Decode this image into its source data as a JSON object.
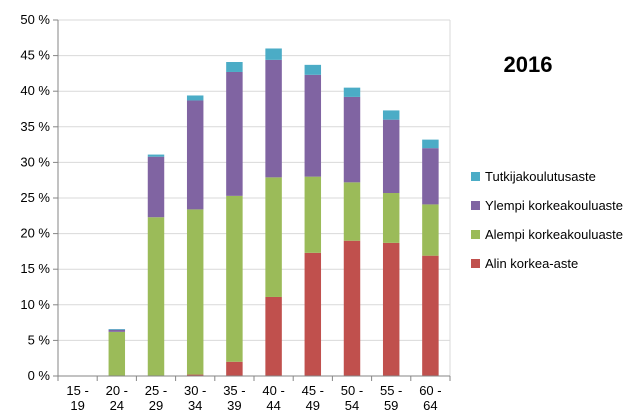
{
  "chart_data": {
    "type": "bar",
    "stacked": true,
    "title": "2016",
    "xlabel": "",
    "ylabel": "",
    "ylim": [
      0,
      50
    ],
    "y_ticks": [
      "0 %",
      "5 %",
      "10 %",
      "15 %",
      "20 %",
      "25 %",
      "30 %",
      "35 %",
      "40 %",
      "45 %",
      "50 %"
    ],
    "y_tick_values": [
      0,
      5,
      10,
      15,
      20,
      25,
      30,
      35,
      40,
      45,
      50
    ],
    "categories": [
      [
        "15 -",
        "19"
      ],
      [
        "20 -",
        "24"
      ],
      [
        "25 -",
        "29"
      ],
      [
        "30 -",
        "34"
      ],
      [
        "35 -",
        "39"
      ],
      [
        "40 -",
        "44"
      ],
      [
        "45 -",
        "49"
      ],
      [
        "50 -",
        "54"
      ],
      [
        "55 -",
        "59"
      ],
      [
        "60 -",
        "64"
      ]
    ],
    "grid": true,
    "legend_position": "right",
    "series": [
      {
        "name": "Alin korkea-aste",
        "color": "#c0504d",
        "values": [
          0,
          0,
          0,
          0.2,
          2.0,
          11.1,
          17.3,
          19.0,
          18.7,
          16.9
        ]
      },
      {
        "name": "Alempi korkeakouluaste",
        "color": "#9bbb59",
        "values": [
          0,
          6.2,
          22.3,
          23.2,
          23.3,
          16.8,
          10.7,
          8.2,
          7.0,
          7.2
        ]
      },
      {
        "name": "Ylempi korkeakouluaste",
        "color": "#8064a2",
        "values": [
          0,
          0.3,
          8.5,
          15.3,
          17.4,
          16.5,
          14.3,
          12.0,
          10.3,
          7.9
        ]
      },
      {
        "name": "Tutkijakoulutusaste",
        "color": "#4bacc6",
        "values": [
          0,
          0.1,
          0.3,
          0.7,
          1.4,
          1.6,
          1.4,
          1.3,
          1.3,
          1.2
        ]
      }
    ],
    "legend_order": [
      "Tutkijakoulutusaste",
      "Ylempi korkeakouluaste",
      "Alempi korkeakouluaste",
      "Alin korkea-aste"
    ]
  }
}
